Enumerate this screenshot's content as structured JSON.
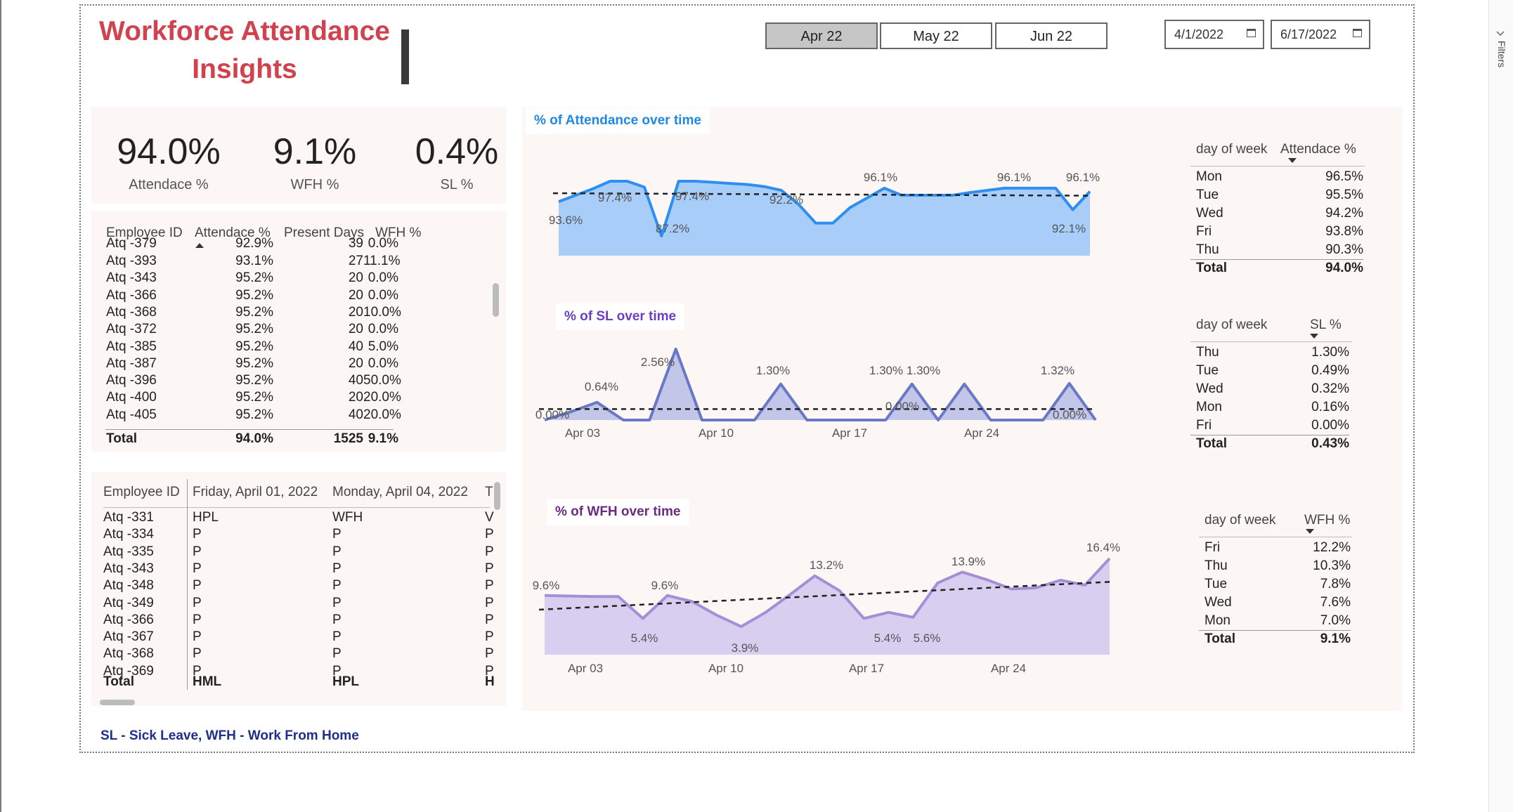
{
  "title": "Workforce Attendance Insights",
  "month_buttons": [
    {
      "label": "Apr 22",
      "selected": true
    },
    {
      "label": "May 22",
      "selected": false
    },
    {
      "label": "Jun 22",
      "selected": false
    }
  ],
  "date_range": {
    "start": "4/1/2022",
    "end": "6/17/2022"
  },
  "right_pane_label": "Filters",
  "kpis": [
    {
      "value": "94.0%",
      "label": "Attendace %"
    },
    {
      "value": "9.1%",
      "label": "WFH %"
    },
    {
      "value": "0.4%",
      "label": "SL %"
    }
  ],
  "employee_table": {
    "columns": [
      "Employee ID",
      "Attendace %",
      "Present Days",
      "WFH %"
    ],
    "partial_top": [
      "Atq -379",
      "92.9%",
      "39",
      "0.0%"
    ],
    "rows": [
      [
        "Atq -393",
        "93.1%",
        "27",
        "11.1%"
      ],
      [
        "Atq -343",
        "95.2%",
        "20",
        "0.0%"
      ],
      [
        "Atq -366",
        "95.2%",
        "20",
        "0.0%"
      ],
      [
        "Atq -368",
        "95.2%",
        "20",
        "10.0%"
      ],
      [
        "Atq -372",
        "95.2%",
        "20",
        "0.0%"
      ],
      [
        "Atq -385",
        "95.2%",
        "40",
        "5.0%"
      ],
      [
        "Atq -387",
        "95.2%",
        "20",
        "0.0%"
      ],
      [
        "Atq -396",
        "95.2%",
        "40",
        "50.0%"
      ],
      [
        "Atq -400",
        "95.2%",
        "20",
        "20.0%"
      ]
    ],
    "partial_bottom": [
      "Atq -405",
      "95.2%",
      "40",
      "20.0%"
    ],
    "total": [
      "Total",
      "94.0%",
      "1525",
      "9.1%"
    ]
  },
  "daily_table": {
    "columns": [
      "Employee ID",
      "Friday, April 01, 2022",
      "Monday, April 04, 2022",
      "T"
    ],
    "rows": [
      [
        "Atq -331",
        "HPL",
        "WFH",
        "V"
      ],
      [
        "Atq -334",
        "P",
        "P",
        "P"
      ],
      [
        "Atq -335",
        "P",
        "P",
        "P"
      ],
      [
        "Atq -343",
        "P",
        "P",
        "P"
      ],
      [
        "Atq -348",
        "P",
        "P",
        "P"
      ],
      [
        "Atq -349",
        "P",
        "P",
        "P"
      ],
      [
        "Atq -366",
        "P",
        "P",
        "P"
      ],
      [
        "Atq -367",
        "P",
        "P",
        "P"
      ],
      [
        "Atq -368",
        "P",
        "P",
        "P"
      ]
    ],
    "partial_bottom": [
      "Atq -369",
      "P",
      "P",
      "P"
    ],
    "total": [
      "Total",
      "HML",
      "HPL",
      "H"
    ]
  },
  "chart_titles": {
    "attendance": "% of Attendance over time",
    "sl": "% of SL over time",
    "wfh": "% of WFH over time"
  },
  "chart_data": [
    {
      "type": "area",
      "title": "% of Attendance over time",
      "trendline": true,
      "color": "#2f8ff0",
      "fill": "#a8cdf8",
      "series": [
        {
          "values": [
            93.6,
            94.8,
            96.0,
            97.4,
            97.4,
            96.3,
            87.2,
            97.4,
            97.4,
            97.2,
            97.0,
            96.8,
            96.4,
            95.7,
            93.1,
            89.6,
            89.6,
            92.5,
            94.3,
            96.1,
            94.8,
            94.8,
            94.8,
            94.8,
            95.3,
            95.7,
            96.1,
            96.1,
            96.1,
            96.1,
            92.1,
            95.5
          ]
        }
      ],
      "data_labels": [
        "93.6%",
        "97.4%",
        "87.2%",
        "97.4%",
        "92.2%",
        "96.1%",
        "96.1%",
        "96.1%",
        "92.1%"
      ]
    },
    {
      "type": "area",
      "title": "% of SL over time",
      "trendline": true,
      "color": "#6a79c6",
      "fill": "#c2c6e8",
      "x": [
        "Apr 01",
        "Apr 03",
        "Apr 05",
        "Apr 06",
        "Apr 07",
        "Apr 08",
        "Apr 09",
        "Apr 11",
        "Apr 12",
        "Apr 13",
        "Apr 14",
        "Apr 16",
        "Apr 17",
        "Apr 19",
        "Apr 20",
        "Apr 21",
        "Apr 22",
        "Apr 23",
        "Apr 26",
        "Apr 27",
        "Apr 28",
        "Apr 29"
      ],
      "x_ticks": [
        "Apr 03",
        "Apr 10",
        "Apr 17",
        "Apr 24"
      ],
      "series": [
        {
          "values": [
            0.0,
            0.3,
            0.64,
            0.0,
            0.0,
            2.56,
            0.0,
            0.0,
            0.0,
            1.3,
            0.0,
            0.0,
            0.0,
            0.0,
            1.3,
            0.0,
            1.3,
            0.0,
            0.0,
            0.0,
            1.32,
            0.0
          ]
        }
      ],
      "data_labels": [
        "0.00%",
        "0.64%",
        "2.56%",
        "1.30%",
        "1.30%",
        "1.30%",
        "0.00%",
        "1.32%",
        "0.00%"
      ]
    },
    {
      "type": "area",
      "title": "% of WFH over time",
      "trendline": true,
      "color": "#a48fd6",
      "fill": "#d8cff0",
      "x_ticks": [
        "Apr 03",
        "Apr 10",
        "Apr 17",
        "Apr 24"
      ],
      "series": [
        {
          "values": [
            9.6,
            9.5,
            9.4,
            9.4,
            5.4,
            9.6,
            8.5,
            6.0,
            3.9,
            6.5,
            9.8,
            13.2,
            10.5,
            5.4,
            6.5,
            5.6,
            11.9,
            13.9,
            12.5,
            10.8,
            11.0,
            12.4,
            11.5,
            16.4
          ]
        }
      ],
      "data_labels": [
        "9.6%",
        "9.6%",
        "5.4%",
        "3.9%",
        "13.2%",
        "5.4%",
        "5.6%",
        "13.9%",
        "16.4%"
      ]
    }
  ],
  "dow_attendance": {
    "columns": [
      "day of week",
      "Attendace %"
    ],
    "rows": [
      [
        "Mon",
        "96.5%"
      ],
      [
        "Tue",
        "95.5%"
      ],
      [
        "Wed",
        "94.2%"
      ],
      [
        "Fri",
        "93.8%"
      ],
      [
        "Thu",
        "90.3%"
      ]
    ],
    "total": [
      "Total",
      "94.0%"
    ]
  },
  "dow_sl": {
    "columns": [
      "day of week",
      "SL %"
    ],
    "rows": [
      [
        "Thu",
        "1.30%"
      ],
      [
        "Tue",
        "0.49%"
      ],
      [
        "Wed",
        "0.32%"
      ],
      [
        "Mon",
        "0.16%"
      ],
      [
        "Fri",
        "0.00%"
      ]
    ],
    "total": [
      "Total",
      "0.43%"
    ]
  },
  "dow_wfh": {
    "columns": [
      "day of week",
      "WFH %"
    ],
    "rows": [
      [
        "Fri",
        "12.2%"
      ],
      [
        "Thu",
        "10.3%"
      ],
      [
        "Tue",
        "7.8%"
      ],
      [
        "Wed",
        "7.6%"
      ],
      [
        "Mon",
        "7.0%"
      ]
    ],
    "total": [
      "Total",
      "9.1%"
    ]
  },
  "footer_note": "SL - Sick Leave, WFH - Work From Home"
}
